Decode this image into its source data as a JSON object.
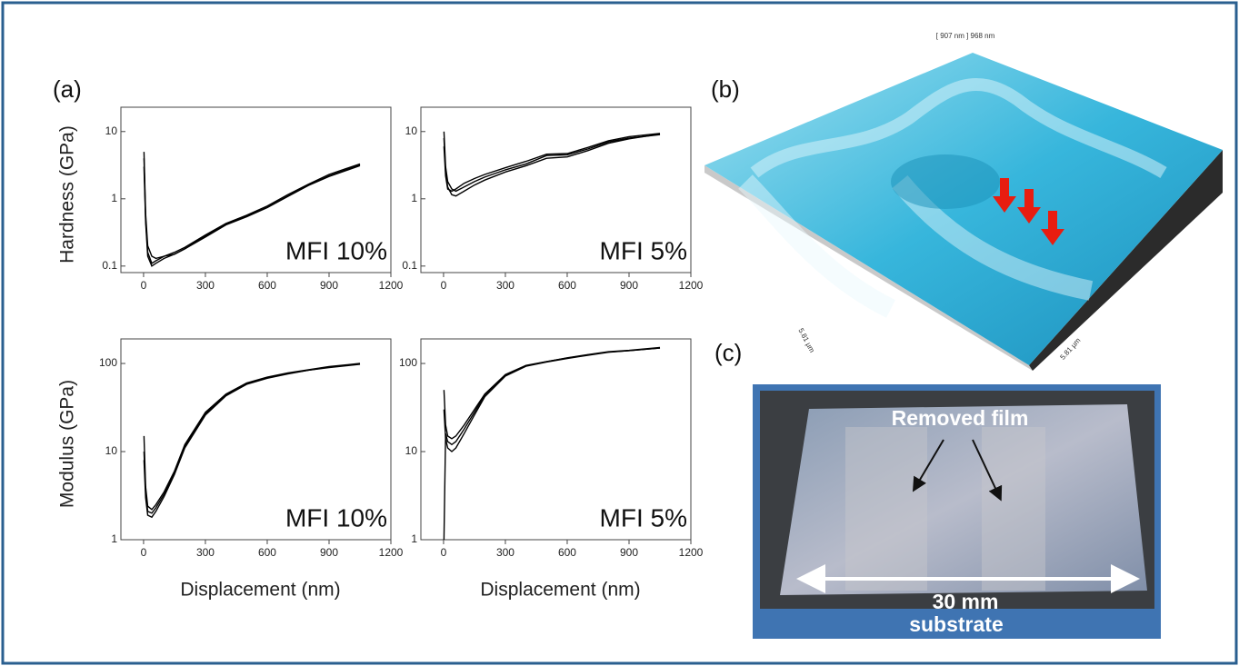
{
  "labels": {
    "a": "(a)",
    "b": "(b)",
    "c": "(c)"
  },
  "afm": {
    "scale": "[ 907 nm ] 968 nm",
    "x_size": "5.81 µm",
    "y_size": "5.81 µm"
  },
  "photo": {
    "annotation": "Removed film",
    "dimension": "30 mm",
    "caption": "substrate"
  },
  "chart_data": [
    {
      "type": "line",
      "ylabel": "Hardness (GPa)",
      "annotation": "MFI 10%",
      "log_y": true,
      "color": "#000000",
      "x": [
        2,
        10,
        20,
        40,
        60,
        100,
        150,
        200,
        300,
        400,
        500,
        600,
        700,
        800,
        900,
        1050
      ],
      "series": [
        {
          "values": [
            5,
            0.6,
            0.2,
            0.14,
            0.13,
            0.14,
            0.15,
            0.18,
            0.28,
            0.42,
            0.55,
            0.75,
            1.1,
            1.6,
            2.2,
            3.2
          ]
        },
        {
          "values": [
            4,
            0.5,
            0.16,
            0.11,
            0.12,
            0.14,
            0.16,
            0.19,
            0.29,
            0.43,
            0.57,
            0.78,
            1.15,
            1.65,
            2.3,
            3.3
          ]
        },
        {
          "values": [
            3,
            0.45,
            0.14,
            0.1,
            0.11,
            0.13,
            0.15,
            0.18,
            0.27,
            0.41,
            0.54,
            0.74,
            1.08,
            1.58,
            2.15,
            3.1
          ]
        }
      ],
      "xlim": [
        -110,
        1200
      ],
      "xticks": [
        0,
        300,
        600,
        900,
        1200
      ],
      "ylim": [
        0.08,
        23
      ],
      "yticks": [
        0.1,
        1,
        10
      ]
    },
    {
      "type": "line",
      "annotation": "MFI 5%",
      "log_y": true,
      "color": "#000000",
      "x": [
        2,
        10,
        20,
        40,
        60,
        100,
        150,
        200,
        300,
        400,
        500,
        600,
        700,
        800,
        900,
        1050
      ],
      "series": [
        {
          "values": [
            10,
            3,
            1.8,
            1.4,
            1.3,
            1.5,
            1.8,
            2.1,
            2.7,
            3.3,
            4.4,
            4.5,
            5.5,
            7,
            8,
            9
          ]
        },
        {
          "values": [
            8,
            2.5,
            1.5,
            1.15,
            1.1,
            1.3,
            1.6,
            1.9,
            2.5,
            3.1,
            4,
            4.2,
            5.2,
            6.7,
            7.8,
            9.2
          ]
        },
        {
          "values": [
            6,
            2.2,
            1.4,
            1.3,
            1.4,
            1.7,
            2,
            2.3,
            2.9,
            3.6,
            4.6,
            4.7,
            5.8,
            7.3,
            8.4,
            9.4
          ]
        }
      ],
      "xlim": [
        -110,
        1200
      ],
      "xticks": [
        0,
        300,
        600,
        900,
        1200
      ],
      "ylim": [
        0.08,
        23
      ],
      "yticks": [
        0.1,
        1,
        10
      ]
    },
    {
      "type": "line",
      "ylabel": "Modulus (GPa)",
      "xlabel": "Displacement (nm)",
      "annotation": "MFI 10%",
      "log_y": true,
      "color": "#000000",
      "x": [
        2,
        10,
        20,
        40,
        60,
        100,
        150,
        200,
        300,
        400,
        500,
        600,
        700,
        800,
        900,
        1050
      ],
      "series": [
        {
          "values": [
            15,
            4,
            2.4,
            2.2,
            2.5,
            3.5,
            6,
            12,
            28,
            45,
            60,
            70,
            78,
            85,
            92,
            100
          ]
        },
        {
          "values": [
            10,
            3.5,
            2.1,
            2,
            2.3,
            3.3,
            5.7,
            11.5,
            27,
            44,
            59,
            69,
            77,
            84,
            91,
            99
          ]
        },
        {
          "values": [
            8,
            3,
            1.9,
            1.8,
            2.1,
            3.1,
            5.5,
            11,
            26,
            43,
            58,
            68,
            76,
            84,
            90,
            98
          ]
        }
      ],
      "xlim": [
        -110,
        1200
      ],
      "xticks": [
        0,
        300,
        600,
        900,
        1200
      ],
      "ylim": [
        1,
        190
      ],
      "yticks": [
        1,
        10,
        100
      ]
    },
    {
      "type": "line",
      "xlabel": "Displacement (nm)",
      "annotation": "MFI 5%",
      "log_y": true,
      "color": "#000000",
      "x": [
        2,
        10,
        20,
        40,
        60,
        100,
        150,
        200,
        300,
        400,
        500,
        600,
        700,
        800,
        900,
        1050
      ],
      "series": [
        {
          "values": [
            50,
            20,
            15,
            14,
            15,
            20,
            30,
            45,
            75,
            95,
            105,
            115,
            125,
            135,
            140,
            150
          ]
        },
        {
          "values": [
            30,
            14,
            11,
            10,
            11,
            16,
            26,
            42,
            72,
            93,
            104,
            114,
            124,
            134,
            140,
            150
          ]
        },
        {
          "values": [
            1,
            16,
            13,
            12,
            13,
            18,
            28,
            44,
            74,
            94,
            105,
            116,
            126,
            136,
            141,
            152
          ]
        }
      ],
      "xlim": [
        -110,
        1200
      ],
      "xticks": [
        0,
        300,
        600,
        900,
        1200
      ],
      "ylim": [
        1,
        190
      ],
      "yticks": [
        1,
        10,
        100
      ]
    }
  ]
}
